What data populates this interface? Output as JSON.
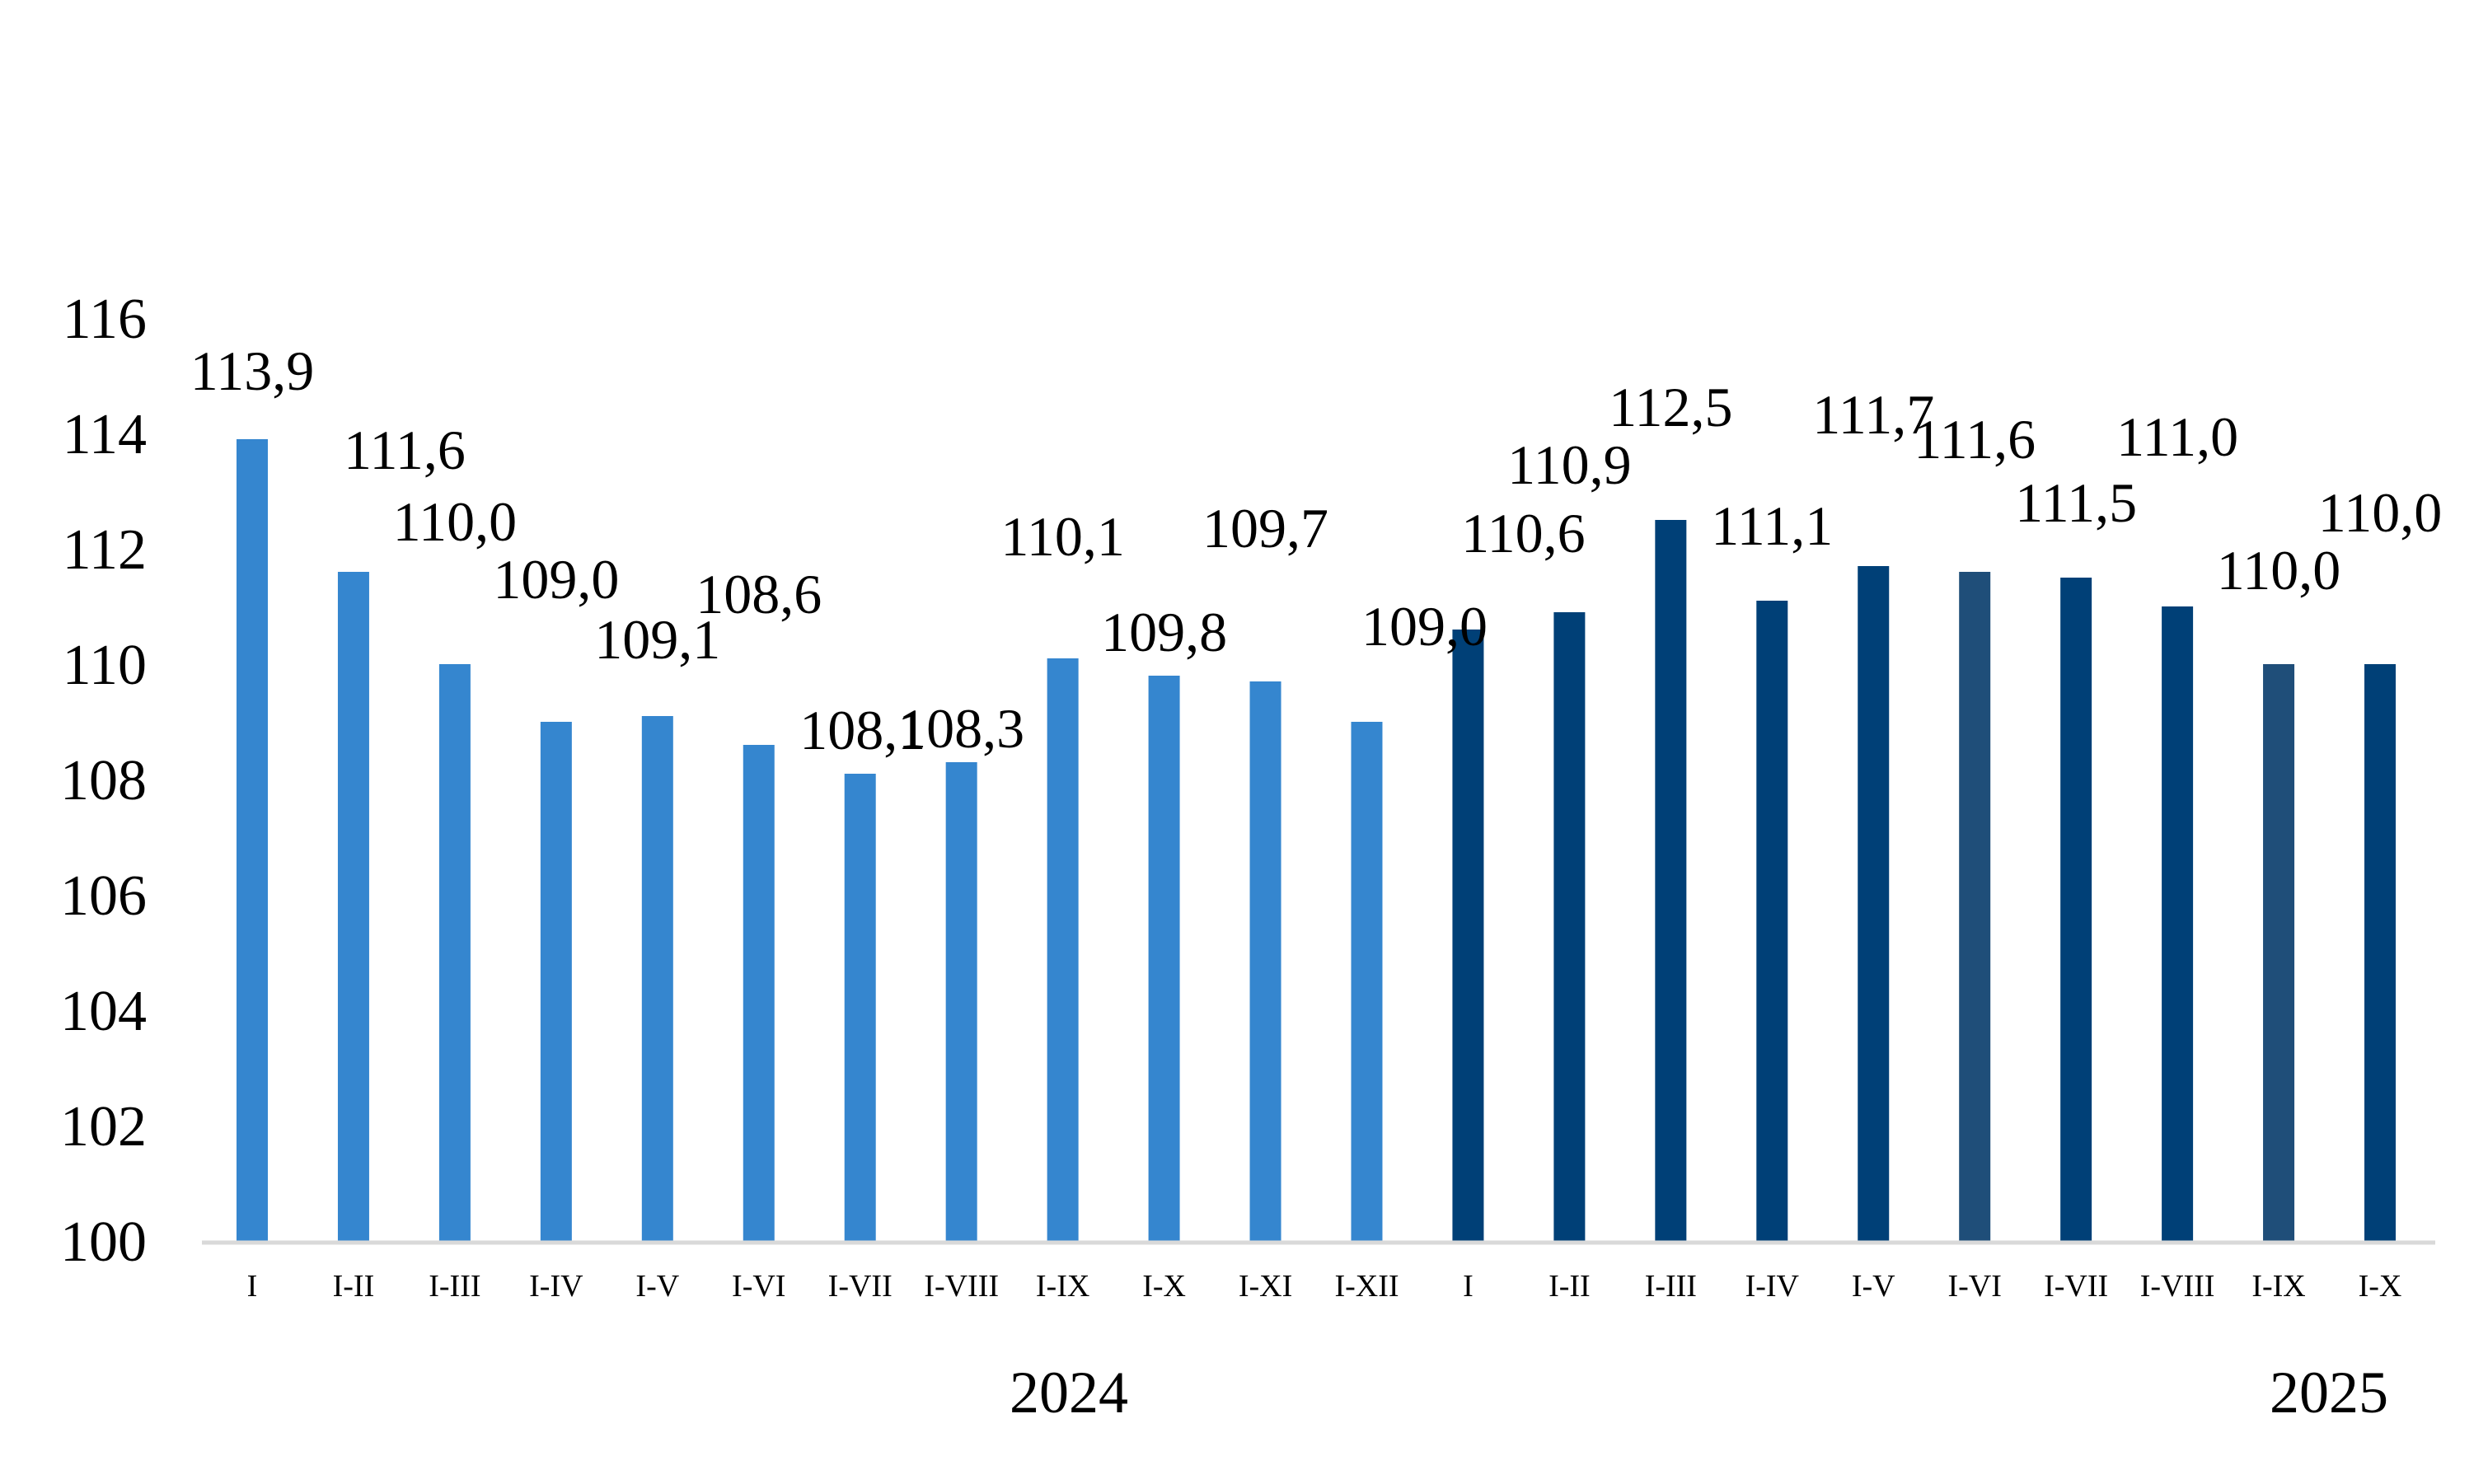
{
  "chart_data": {
    "type": "bar",
    "title": "",
    "xlabel": "",
    "ylabel": "",
    "ylim": [
      100,
      116
    ],
    "y_ticks": [
      "100",
      "102",
      "104",
      "106",
      "108",
      "110",
      "112",
      "114",
      "116"
    ],
    "grid": false,
    "categories": [
      "I",
      "I-II",
      "I-III",
      "I-IV",
      "I-V",
      "I-VI",
      "I-VII",
      "I-VIII",
      "I-IX",
      "I-X",
      "I-XI",
      "I-XII",
      "I",
      "I-II",
      "I-III",
      "I-IV",
      "I-V",
      "I-VI",
      "I-VII",
      "I-VIII",
      "I-IX",
      "I-X"
    ],
    "values": [
      113.9,
      111.6,
      110.0,
      109.0,
      109.1,
      108.6,
      108.1,
      108.3,
      110.1,
      109.8,
      109.7,
      109.0,
      110.6,
      110.9,
      112.5,
      111.1,
      111.7,
      111.6,
      111.5,
      111.0,
      110.0,
      110.0
    ],
    "value_labels": [
      "113,9",
      "111,6",
      "110,0",
      "109,0",
      "109,1",
      "108,6",
      "108,1",
      "108,3",
      "110,1",
      "109,8",
      "109,7",
      "109,0",
      "110,6",
      "110,9",
      "112,5",
      "111,1",
      "111,7",
      "111,6",
      "111,5",
      "111,0",
      "110,0",
      "110,0"
    ],
    "bar_colors": [
      "#3586CF",
      "#3586CF",
      "#3586CF",
      "#3586CF",
      "#3586CF",
      "#3586CF",
      "#3586CF",
      "#3586CF",
      "#3586CF",
      "#3586CF",
      "#3586CF",
      "#3586CF",
      "#004077",
      "#004077",
      "#004077",
      "#004077",
      "#004077",
      "#1F4E79",
      "#004077",
      "#004077",
      "#1F4E79",
      "#004077"
    ],
    "groups": [
      {
        "label": "2024",
        "start": 0,
        "end": 11
      },
      {
        "label": "2025",
        "start": 12,
        "end": 21
      }
    ],
    "axis_color": "#D9D9D9"
  }
}
